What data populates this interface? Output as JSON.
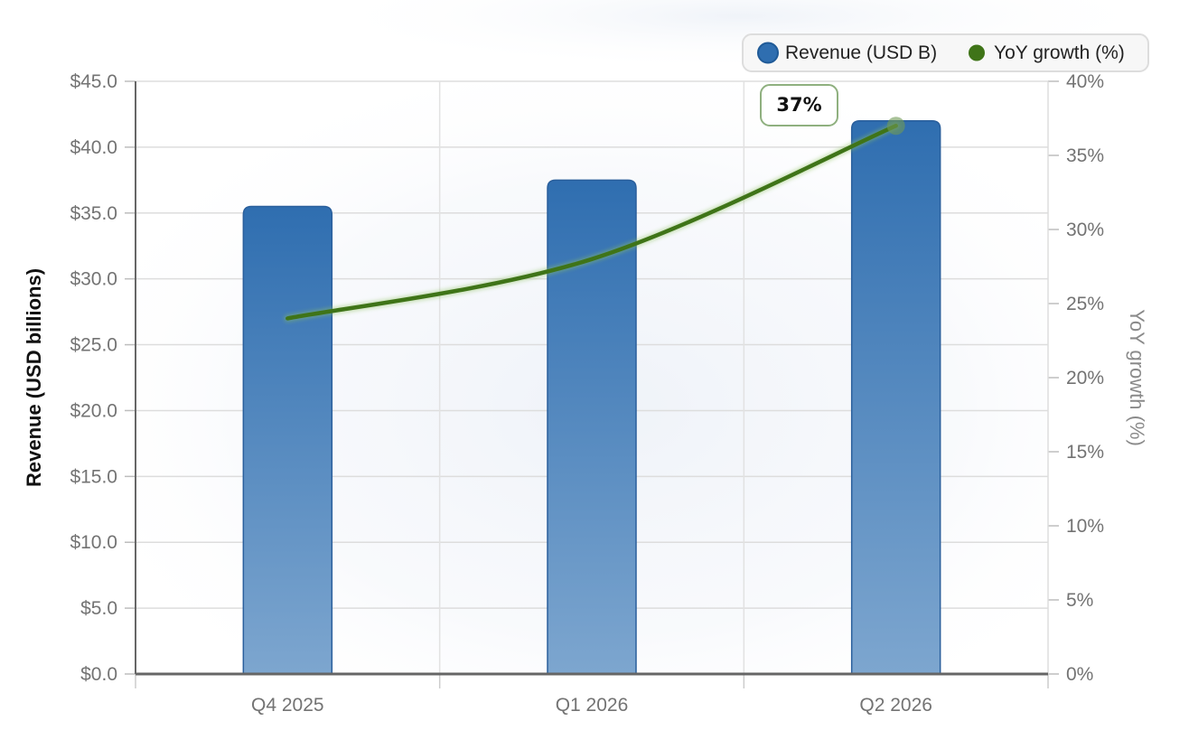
{
  "chart_data": {
    "type": "bar",
    "categories": [
      "Q4 2025",
      "Q1 2026",
      "Q2 2026"
    ],
    "series": [
      {
        "name": "Revenue (USD B)",
        "type": "bar",
        "axis": "left",
        "values": [
          35.5,
          37.5,
          42.0
        ],
        "color": "#2f6eb0"
      },
      {
        "name": "YoY growth (%)",
        "type": "line",
        "axis": "right",
        "values": [
          24,
          28,
          37
        ],
        "color": "#3f7418"
      }
    ],
    "ylabel": "Revenue (USD billions)",
    "y2label": "YoY growth (%)",
    "ylim": [
      0,
      45
    ],
    "y2lim": [
      0,
      40
    ],
    "y_ticks": [
      "$0.0",
      "$5.0",
      "$10.0",
      "$15.0",
      "$20.0",
      "$25.0",
      "$30.0",
      "$35.0",
      "$40.0",
      "$45.0"
    ],
    "y2_ticks": [
      "0%",
      "5%",
      "10%",
      "15%",
      "20%",
      "25%",
      "30%",
      "35%",
      "40%"
    ],
    "annotation": {
      "text": "37%",
      "category": "Q2 2026",
      "series": "YoY growth (%)"
    },
    "grid": true,
    "legend": {
      "position": "top-right",
      "items": [
        "Revenue (USD B)",
        "YoY growth (%)"
      ]
    }
  }
}
